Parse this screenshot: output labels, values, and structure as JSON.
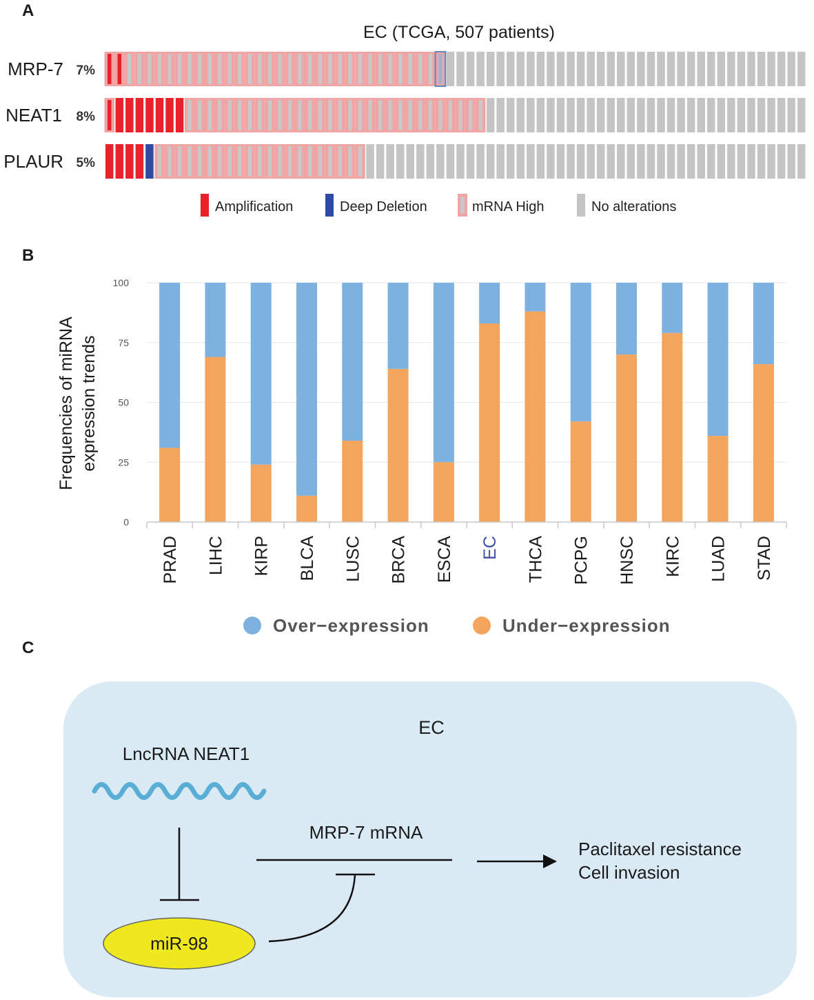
{
  "panels": {
    "a": "A",
    "b": "B",
    "c": "C"
  },
  "chart_data": [
    {
      "type": "oncoprint",
      "title": "EC (TCGA, 507 patients)",
      "colors": {
        "amplification": "#e8222a",
        "deep_deletion": "#2e4aa5",
        "mrna_high": "#f2a3a3",
        "mrna_high_inner": "#c8c8c8",
        "no_alteration": "#c4c4c4"
      },
      "rows": [
        {
          "gene": "MRP-7",
          "percent": "7%",
          "amplification": 2,
          "deep_deletion": 0,
          "mrna_high": 33,
          "mrna_high_deep_deletion": 1,
          "unaltered": 39,
          "first_mrna_high_with_amp": 1
        },
        {
          "gene": "NEAT1",
          "percent": "8%",
          "amplification": 8,
          "deep_deletion": 0,
          "mrna_high": 31,
          "mrna_high_deep_deletion": 0,
          "unaltered": 31,
          "first_mrna_high_with_amp": 1
        },
        {
          "gene": "PLAUR",
          "percent": "5%",
          "amplification": 4,
          "deep_deletion": 1,
          "mrna_high": 21,
          "mrna_high_deep_deletion": 0,
          "unaltered": 44,
          "first_mrna_high_with_amp": 0
        }
      ],
      "legend": [
        {
          "key": "amplification",
          "label": "Amplification"
        },
        {
          "key": "deep_deletion",
          "label": "Deep Deletion"
        },
        {
          "key": "mrna_high",
          "label": "mRNA High"
        },
        {
          "key": "no_alteration",
          "label": "No alterations"
        }
      ]
    },
    {
      "type": "bar",
      "stacked": true,
      "title": "",
      "ylabel": [
        "Frequencies of miRNA",
        "expression trends"
      ],
      "xlabel": "",
      "ylim": [
        0,
        100
      ],
      "yticks": [
        0,
        25,
        50,
        75,
        100
      ],
      "grid": true,
      "categories": [
        "PRAD",
        "LIHC",
        "KIRP",
        "BLCA",
        "LUSC",
        "BRCA",
        "ESCA",
        "EC",
        "THCA",
        "PCPG",
        "HNSC",
        "KIRC",
        "LUAD",
        "STAD"
      ],
      "highlight_category": "EC",
      "highlight_color": "#3f4fa0",
      "series": [
        {
          "name": "Under-expression",
          "color": "#f3a55e",
          "values": [
            31,
            69,
            24,
            11,
            34,
            64,
            25,
            83,
            88,
            42,
            70,
            79,
            36,
            66
          ]
        },
        {
          "name": "Over-expression",
          "color": "#7db2e0",
          "values": [
            69,
            31,
            76,
            89,
            66,
            36,
            75,
            17,
            12,
            58,
            30,
            21,
            64,
            34
          ]
        }
      ],
      "legend": [
        {
          "name": "Over-expression",
          "color": "#7db2e0"
        },
        {
          "name": "Under-expression",
          "color": "#f3a55e"
        }
      ],
      "legend_position": "bottom"
    }
  ],
  "diagram": {
    "box_title": "EC",
    "lncrna_label": "LncRNA NEAT1",
    "mrna_label": "MRP-7 mRNA",
    "mirna_label": "miR-98",
    "outcome_lines": [
      "Paclitaxel resistance",
      "Cell invasion"
    ],
    "box_color": "#daeaf5",
    "wave_color": "#5aaed6",
    "mirna_color": "#efe81f"
  }
}
